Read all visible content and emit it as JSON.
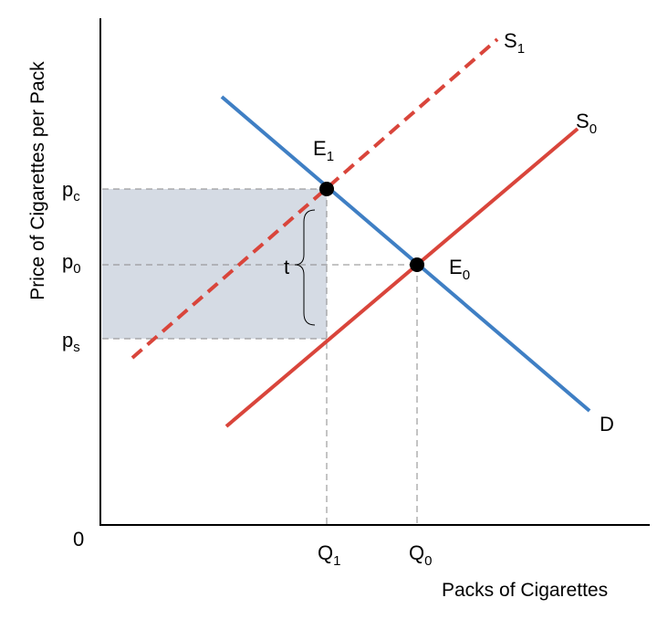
{
  "figure": {
    "y_axis_title": "Price of  Cigarettes per Pack",
    "x_axis_title": "Packs of Cigarettes",
    "origin_label": "0",
    "y_ticks": [
      {
        "base": "p",
        "sub": "c"
      },
      {
        "base": "p",
        "sub": "0"
      },
      {
        "base": "p",
        "sub": "s"
      }
    ],
    "x_ticks": [
      {
        "base": "Q",
        "sub": "1"
      },
      {
        "base": "Q",
        "sub": "0"
      }
    ],
    "curves": {
      "demand": {
        "label": "D",
        "color": "#3f7fc4"
      },
      "supply_original": {
        "base": "S",
        "sub": "0",
        "color": "#d9453b"
      },
      "supply_taxed": {
        "base": "S",
        "sub": "1",
        "color": "#d9453b",
        "style": "dashed"
      }
    },
    "equilibria": [
      {
        "base": "E",
        "sub": "1"
      },
      {
        "base": "E",
        "sub": "0"
      }
    ],
    "tax_label": "t",
    "shaded_region_color": "#d5dbe4"
  }
}
